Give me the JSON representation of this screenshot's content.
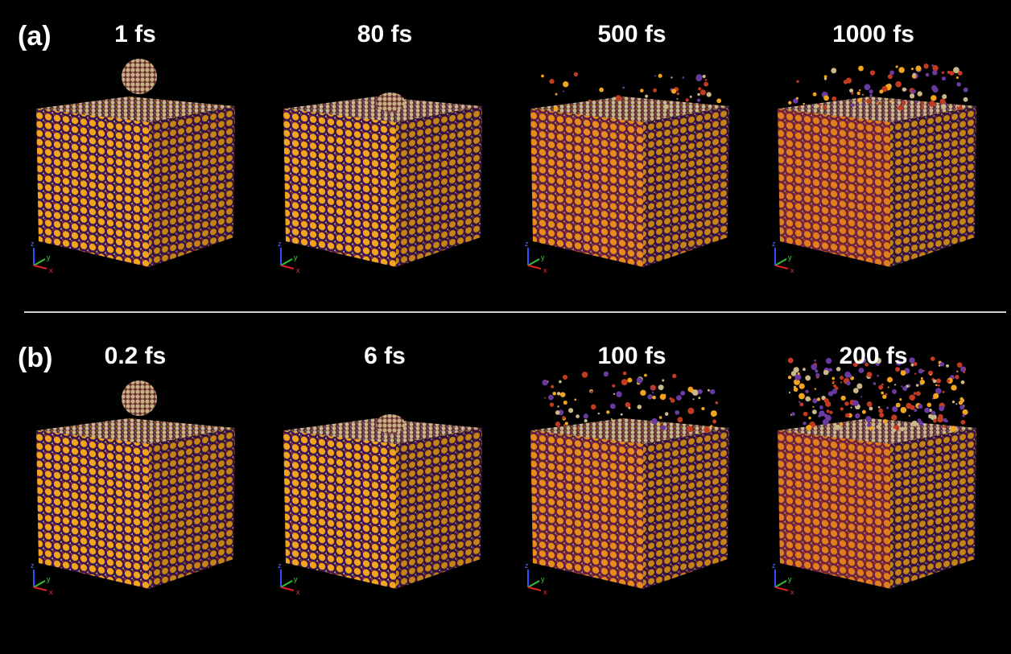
{
  "panels": [
    {
      "label": "(a)",
      "frames": [
        "1 fs",
        "80 fs",
        "500 fs",
        "1000 fs"
      ]
    },
    {
      "label": "(b)",
      "frames": [
        "0.2 fs",
        "6 fs",
        "100 fs",
        "200 fs"
      ]
    }
  ],
  "axes": {
    "x": "x",
    "y": "y",
    "z": "z"
  }
}
